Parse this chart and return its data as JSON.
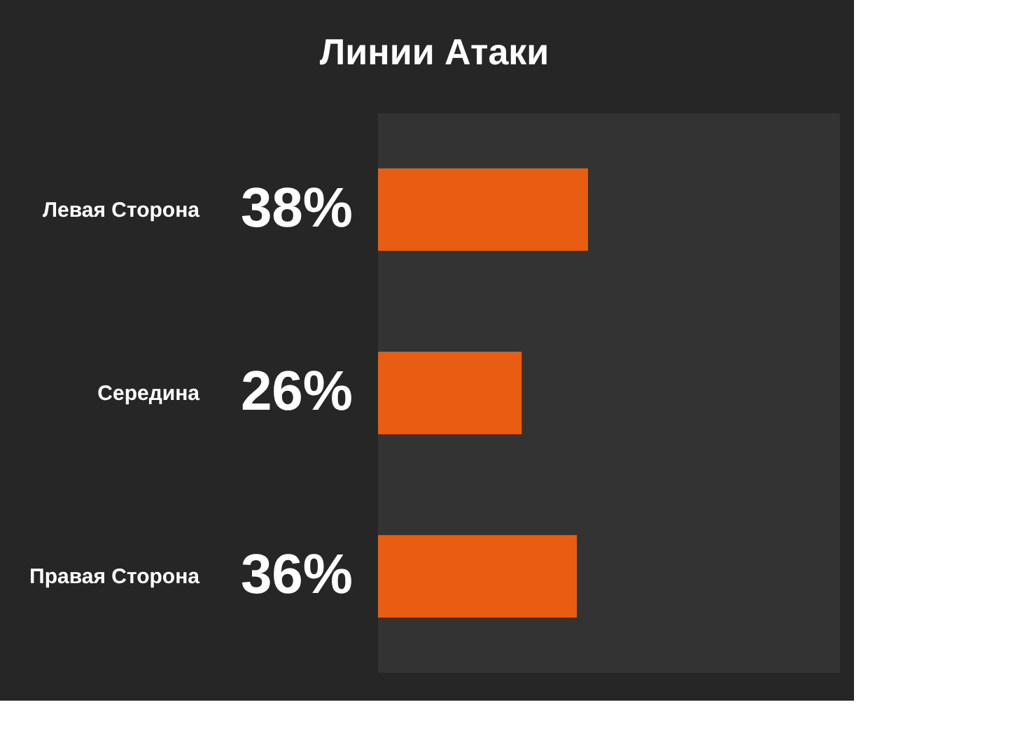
{
  "chart_data": {
    "type": "bar",
    "orientation": "horizontal",
    "title": "Линии Атаки",
    "categories": [
      "Левая Сторона",
      "Середина",
      "Правая Сторона"
    ],
    "values": [
      38,
      26,
      36
    ],
    "color": "#e95d12",
    "value_labels": [
      "38%",
      "26%",
      "36%"
    ]
  }
}
